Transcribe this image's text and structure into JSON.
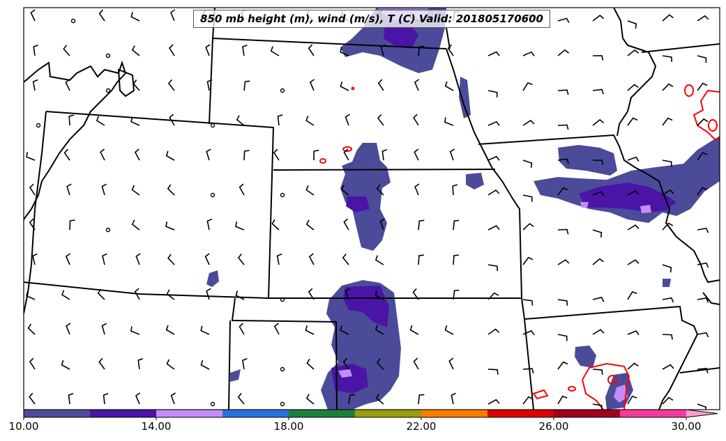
{
  "map": {
    "title": "850 mb height (m), wind (m/s), T (C) Valid: 201805170600"
  },
  "colorbar": {
    "colors": [
      "#4b4b9a",
      "#4a14a6",
      "#c48cf5",
      "#2a6fe0",
      "#1d7f3c",
      "#999d0e",
      "#ff7a00",
      "#d90000",
      "#a0001e",
      "#f23c9a",
      "#ff9dd2"
    ],
    "labels": [
      "10.00",
      "14.00",
      "18.00",
      "22.00",
      "26.00",
      "30.00"
    ]
  },
  "palette": {
    "fill_dark": "#4b4b9a",
    "fill_mid": "#4a14a6",
    "fill_light": "#c48cf5",
    "contour": "#ff0000",
    "boundary": "#000000"
  }
}
